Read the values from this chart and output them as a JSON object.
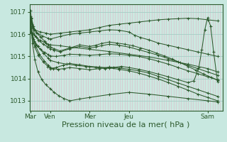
{
  "bg_color": "#c8e8e0",
  "plot_bg_color": "#cce8e0",
  "line_color": "#2d5a2d",
  "grid_color_v": "#dbb8c8",
  "grid_color_h": "#aad0c8",
  "xlabel": "Pression niveau de la mer( hPa )",
  "xlabel_fontsize": 8,
  "xtick_labels": [
    "Mar",
    "Ven",
    "Mer",
    "Jeu",
    "Sam"
  ],
  "xtick_positions": [
    0,
    1,
    3,
    5,
    9
  ],
  "ytick_labels": [
    "1013",
    "1014",
    "1015",
    "1016",
    "1017"
  ],
  "ytick_values": [
    1013,
    1014,
    1015,
    1016,
    1017
  ],
  "ylim": [
    1012.55,
    1017.35
  ],
  "xlim": [
    -0.05,
    9.75
  ],
  "num_vlines": 80,
  "lines": [
    {
      "x": [
        0.0,
        0.05,
        0.12,
        0.25,
        0.5,
        0.8,
        1.0,
        1.5,
        2.0,
        2.5,
        3.0,
        3.5,
        4.0,
        4.5,
        5.0,
        5.5,
        6.0,
        6.5,
        7.0,
        7.5,
        8.0,
        8.5,
        9.0,
        9.5
      ],
      "y": [
        1017.05,
        1016.7,
        1016.35,
        1016.18,
        1016.1,
        1016.05,
        1016.0,
        1016.05,
        1016.1,
        1016.15,
        1016.2,
        1016.3,
        1016.4,
        1016.45,
        1016.5,
        1016.55,
        1016.6,
        1016.65,
        1016.68,
        1016.7,
        1016.72,
        1016.7,
        1016.65,
        1016.6
      ]
    },
    {
      "x": [
        0.0,
        0.08,
        0.18,
        0.35,
        0.6,
        0.9,
        1.0,
        1.5,
        2.0,
        2.5,
        3.0,
        3.5,
        4.0,
        4.5,
        5.0,
        5.3,
        5.6,
        6.0,
        6.5,
        7.0,
        7.5,
        8.0,
        8.5,
        9.0,
        9.5
      ],
      "y": [
        1016.8,
        1016.45,
        1016.2,
        1016.05,
        1015.92,
        1015.82,
        1015.78,
        1015.9,
        1016.0,
        1016.05,
        1016.1,
        1016.15,
        1016.2,
        1016.18,
        1016.1,
        1015.95,
        1015.85,
        1015.75,
        1015.6,
        1015.5,
        1015.4,
        1015.3,
        1015.2,
        1015.1,
        1015.0
      ]
    },
    {
      "x": [
        0.0,
        0.1,
        0.22,
        0.4,
        0.65,
        0.88,
        1.0,
        1.2,
        1.5,
        2.0,
        2.5,
        3.0,
        3.3,
        3.6,
        4.0,
        4.5,
        5.0,
        5.5,
        6.0,
        6.5,
        7.0,
        7.5,
        8.0,
        8.5,
        9.0,
        9.5
      ],
      "y": [
        1016.75,
        1016.3,
        1015.95,
        1015.72,
        1015.55,
        1015.42,
        1015.35,
        1015.28,
        1015.2,
        1015.35,
        1015.45,
        1015.38,
        1015.42,
        1015.48,
        1015.55,
        1015.5,
        1015.42,
        1015.3,
        1015.18,
        1015.05,
        1014.9,
        1014.75,
        1014.6,
        1014.45,
        1014.3,
        1014.15
      ]
    },
    {
      "x": [
        0.0,
        0.1,
        0.25,
        0.45,
        0.7,
        0.9,
        1.0,
        1.15,
        1.4,
        1.7,
        2.0,
        2.5,
        3.0,
        3.5,
        4.0,
        4.5,
        5.0,
        5.5,
        6.0,
        6.5,
        7.0,
        7.5,
        8.0,
        8.5,
        9.0,
        9.5
      ],
      "y": [
        1016.6,
        1016.0,
        1015.5,
        1015.1,
        1014.8,
        1014.6,
        1014.5,
        1014.45,
        1014.42,
        1014.45,
        1014.5,
        1014.45,
        1014.4,
        1014.45,
        1014.52,
        1014.48,
        1014.42,
        1014.35,
        1014.25,
        1014.1,
        1013.95,
        1013.8,
        1013.65,
        1013.5,
        1013.35,
        1013.2
      ]
    },
    {
      "x": [
        0.0,
        0.1,
        0.22,
        0.38,
        0.58,
        0.78,
        1.0,
        1.2,
        1.45,
        1.7,
        2.0,
        2.5,
        3.0,
        4.0,
        5.0,
        6.0,
        7.0,
        8.0,
        9.0,
        9.5
      ],
      "y": [
        1016.55,
        1015.6,
        1014.85,
        1014.3,
        1013.95,
        1013.72,
        1013.55,
        1013.38,
        1013.22,
        1013.1,
        1013.0,
        1013.08,
        1013.15,
        1013.28,
        1013.38,
        1013.3,
        1013.2,
        1013.1,
        1013.0,
        1012.95
      ]
    },
    {
      "x": [
        0.0,
        0.07,
        0.18,
        0.32,
        0.5,
        0.72,
        0.9,
        1.0,
        1.3,
        1.7,
        2.0,
        2.5,
        3.0,
        3.5,
        4.0,
        4.5,
        5.0,
        5.5,
        6.0,
        6.5,
        7.0,
        7.5,
        8.0,
        8.5,
        9.0,
        9.5
      ],
      "y": [
        1016.45,
        1016.05,
        1015.7,
        1015.48,
        1015.32,
        1015.18,
        1015.08,
        1015.02,
        1015.0,
        1015.05,
        1015.1,
        1015.08,
        1015.05,
        1015.08,
        1015.12,
        1015.1,
        1015.05,
        1015.0,
        1014.9,
        1014.78,
        1014.65,
        1014.5,
        1014.35,
        1014.22,
        1014.08,
        1013.95
      ]
    },
    {
      "x": [
        0.0,
        0.1,
        0.22,
        0.4,
        0.65,
        0.88,
        1.0,
        1.3,
        1.65,
        2.0,
        2.5,
        3.0,
        3.5,
        4.0,
        4.5,
        5.0,
        5.5,
        6.0,
        6.5,
        7.0,
        7.5,
        8.0,
        8.5,
        9.0,
        9.5
      ],
      "y": [
        1016.4,
        1015.85,
        1015.42,
        1015.05,
        1014.75,
        1014.55,
        1014.45,
        1014.5,
        1014.6,
        1014.68,
        1014.62,
        1014.55,
        1014.52,
        1014.48,
        1014.42,
        1014.35,
        1014.25,
        1014.12,
        1013.98,
        1013.82,
        1013.65,
        1013.48,
        1013.3,
        1013.15,
        1013.0
      ]
    },
    {
      "x": [
        0.05,
        0.15,
        0.3,
        0.5,
        0.72,
        0.9,
        1.0,
        1.2,
        1.5,
        2.0,
        2.5,
        3.0,
        3.3,
        3.6,
        4.0,
        4.4,
        4.8,
        5.2,
        5.6,
        6.0,
        6.4,
        6.8,
        7.2,
        7.6,
        8.0,
        8.4,
        8.8,
        9.2,
        9.5
      ],
      "y": [
        1016.75,
        1016.35,
        1016.08,
        1015.88,
        1015.68,
        1015.52,
        1015.42,
        1015.35,
        1015.25,
        1015.38,
        1015.52,
        1015.45,
        1015.5,
        1015.58,
        1015.65,
        1015.6,
        1015.55,
        1015.48,
        1015.38,
        1015.28,
        1015.15,
        1015.02,
        1014.88,
        1014.72,
        1014.55,
        1014.38,
        1014.2,
        1014.05,
        1013.92
      ]
    },
    {
      "x": [
        0.0,
        0.1,
        0.28,
        0.5,
        0.78,
        1.0,
        1.5,
        2.0,
        3.0,
        4.0,
        5.0,
        6.0,
        7.0,
        8.0,
        9.0,
        9.5
      ],
      "y": [
        1016.25,
        1016.05,
        1015.88,
        1015.72,
        1015.6,
        1015.52,
        1015.48,
        1015.42,
        1015.32,
        1015.22,
        1015.1,
        1014.98,
        1014.82,
        1014.65,
        1014.45,
        1014.3
      ]
    },
    {
      "x": [
        0.0,
        0.15,
        0.38,
        0.65,
        0.9,
        1.0,
        1.4,
        1.85,
        2.3,
        2.8,
        3.3,
        3.8,
        4.2,
        4.6,
        5.0,
        5.5,
        6.0,
        6.5,
        7.0,
        7.5,
        8.0,
        8.3,
        8.55,
        8.7,
        8.85,
        9.0,
        9.15,
        9.3,
        9.5
      ],
      "y": [
        1016.1,
        1015.78,
        1015.45,
        1015.15,
        1014.92,
        1014.82,
        1014.72,
        1014.65,
        1014.6,
        1014.55,
        1014.5,
        1014.45,
        1014.5,
        1014.55,
        1014.5,
        1014.42,
        1014.32,
        1014.2,
        1014.08,
        1013.95,
        1013.82,
        1013.9,
        1014.5,
        1015.3,
        1016.2,
        1016.75,
        1016.35,
        1015.2,
        1013.85
      ]
    }
  ]
}
